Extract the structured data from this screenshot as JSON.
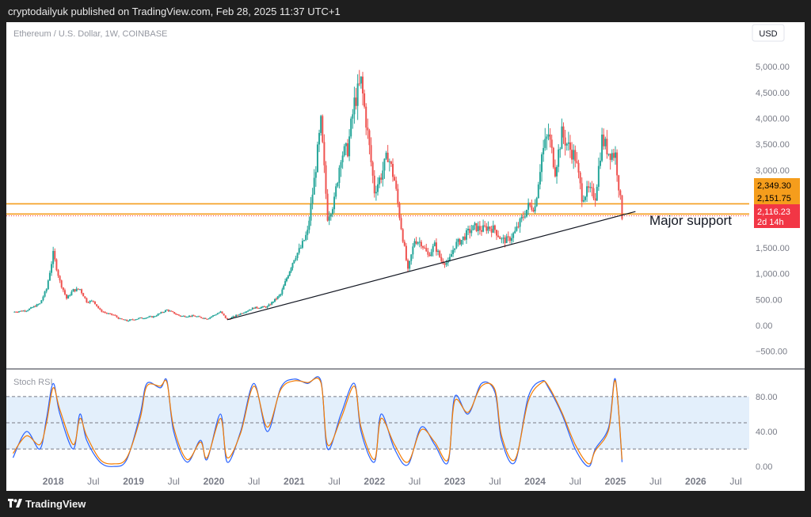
{
  "header": {
    "published": "cryptodailyuk published on TradingView.com, Feb 28, 2025 11:37 UTC+1"
  },
  "footer": {
    "brand": "TradingView"
  },
  "symbol_title": "Ethereum / U.S. Dollar, 1W, COINBASE",
  "currency": "USD",
  "annotation": "Major support",
  "indicator_label": "Stoch RSI",
  "price_labels": {
    "upper": {
      "value": "2,349.30",
      "color": "#f59d1c"
    },
    "middle": {
      "value": "2,151.75",
      "color": "#f59d1c"
    },
    "current": {
      "value": "2,116.23",
      "countdown": "2d 14h",
      "color": "#f23645"
    }
  },
  "colors": {
    "up": "#26a69a",
    "down": "#ef5350",
    "support": "#f59d1c",
    "stoch_k": "#2962ff",
    "stoch_d": "#f57c00",
    "stoch_band": "#e3effb"
  },
  "chart_data": [
    {
      "type": "candlestick",
      "title": "Ethereum / U.S. Dollar, 1W, COINBASE",
      "x_tick_labels": [
        "2018",
        "Jul",
        "2019",
        "Jul",
        "2020",
        "Jul",
        "2021",
        "Jul",
        "2022",
        "Jul",
        "2023",
        "Jul",
        "2024",
        "Jul",
        "2025",
        "Jul",
        "2026",
        "Jul"
      ],
      "y_tick_labels": [
        "5,000.00",
        "4,500.00",
        "4,000.00",
        "3,500.00",
        "3,000.00",
        "2,500.00",
        "2,000.00",
        "1,500.00",
        "1,000.00",
        "500.00",
        "0.00",
        "−500.00"
      ],
      "y_ticks": [
        5000,
        4500,
        4000,
        3500,
        3000,
        2500,
        2000,
        1500,
        1000,
        500,
        0,
        -500
      ],
      "xlim": [
        "2017-06",
        "2026-09"
      ],
      "ylim": [
        -750,
        5400
      ],
      "horizontal_levels": [
        2349.3,
        2151.75
      ],
      "trendline": {
        "from": {
          "x": "2020-03",
          "y": 110
        },
        "to": {
          "x": "2025-04",
          "y": 2200
        },
        "label": "Major support"
      },
      "series": [
        {
          "name": "",
          "points": [
            {
              "x": "2017-07",
              "y": 260
            },
            {
              "x": "2017-09",
              "y": 290
            },
            {
              "x": "2017-11",
              "y": 420
            },
            {
              "x": "2017-12",
              "y": 700
            },
            {
              "x": "2018-01",
              "y": 1380
            },
            {
              "x": "2018-02",
              "y": 850
            },
            {
              "x": "2018-03",
              "y": 520
            },
            {
              "x": "2018-04",
              "y": 680
            },
            {
              "x": "2018-05",
              "y": 700
            },
            {
              "x": "2018-06",
              "y": 460
            },
            {
              "x": "2018-07",
              "y": 470
            },
            {
              "x": "2018-08",
              "y": 290
            },
            {
              "x": "2018-09",
              "y": 230
            },
            {
              "x": "2018-10",
              "y": 200
            },
            {
              "x": "2018-11",
              "y": 120
            },
            {
              "x": "2018-12",
              "y": 90
            },
            {
              "x": "2019-02",
              "y": 140
            },
            {
              "x": "2019-04",
              "y": 170
            },
            {
              "x": "2019-06",
              "y": 300
            },
            {
              "x": "2019-08",
              "y": 180
            },
            {
              "x": "2019-10",
              "y": 180
            },
            {
              "x": "2019-12",
              "y": 130
            },
            {
              "x": "2020-02",
              "y": 260
            },
            {
              "x": "2020-03",
              "y": 110
            },
            {
              "x": "2020-05",
              "y": 230
            },
            {
              "x": "2020-07",
              "y": 340
            },
            {
              "x": "2020-09",
              "y": 360
            },
            {
              "x": "2020-11",
              "y": 600
            },
            {
              "x": "2021-01",
              "y": 1300
            },
            {
              "x": "2021-02",
              "y": 1500
            },
            {
              "x": "2021-03",
              "y": 1800
            },
            {
              "x": "2021-04",
              "y": 2800
            },
            {
              "x": "2021-05",
              "y": 3900
            },
            {
              "x": "2021-06",
              "y": 2100
            },
            {
              "x": "2021-07",
              "y": 2400
            },
            {
              "x": "2021-08",
              "y": 3300
            },
            {
              "x": "2021-09",
              "y": 3400
            },
            {
              "x": "2021-10",
              "y": 4300
            },
            {
              "x": "2021-11",
              "y": 4700
            },
            {
              "x": "2021-12",
              "y": 3700
            },
            {
              "x": "2022-01",
              "y": 2600
            },
            {
              "x": "2022-02",
              "y": 2900
            },
            {
              "x": "2022-03",
              "y": 3300
            },
            {
              "x": "2022-04",
              "y": 2800
            },
            {
              "x": "2022-05",
              "y": 1900
            },
            {
              "x": "2022-06",
              "y": 1050
            },
            {
              "x": "2022-07",
              "y": 1650
            },
            {
              "x": "2022-08",
              "y": 1600
            },
            {
              "x": "2022-09",
              "y": 1350
            },
            {
              "x": "2022-10",
              "y": 1550
            },
            {
              "x": "2022-11",
              "y": 1250
            },
            {
              "x": "2022-12",
              "y": 1200
            },
            {
              "x": "2023-01",
              "y": 1550
            },
            {
              "x": "2023-02",
              "y": 1650
            },
            {
              "x": "2023-03",
              "y": 1800
            },
            {
              "x": "2023-04",
              "y": 1900
            },
            {
              "x": "2023-05",
              "y": 1850
            },
            {
              "x": "2023-06",
              "y": 1900
            },
            {
              "x": "2023-07",
              "y": 1850
            },
            {
              "x": "2023-08",
              "y": 1650
            },
            {
              "x": "2023-09",
              "y": 1650
            },
            {
              "x": "2023-10",
              "y": 1800
            },
            {
              "x": "2023-11",
              "y": 2050
            },
            {
              "x": "2023-12",
              "y": 2300
            },
            {
              "x": "2024-01",
              "y": 2300
            },
            {
              "x": "2024-02",
              "y": 3300
            },
            {
              "x": "2024-03",
              "y": 3700
            },
            {
              "x": "2024-04",
              "y": 3000
            },
            {
              "x": "2024-05",
              "y": 3700
            },
            {
              "x": "2024-06",
              "y": 3450
            },
            {
              "x": "2024-07",
              "y": 3250
            },
            {
              "x": "2024-08",
              "y": 2500
            },
            {
              "x": "2024-09",
              "y": 2600
            },
            {
              "x": "2024-10",
              "y": 2500
            },
            {
              "x": "2024-11",
              "y": 3600
            },
            {
              "x": "2024-12",
              "y": 3350
            },
            {
              "x": "2025-01",
              "y": 3300
            },
            {
              "x": "2025-02",
              "y": 2116.23
            }
          ]
        }
      ]
    },
    {
      "type": "line",
      "title": "Stoch RSI",
      "x_tick_labels": [
        "2018",
        "Jul",
        "2019",
        "Jul",
        "2020",
        "Jul",
        "2021",
        "Jul",
        "2022",
        "Jul",
        "2023",
        "Jul",
        "2024",
        "Jul",
        "2025",
        "Jul",
        "2026",
        "Jul"
      ],
      "y_tick_labels": [
        "80.00",
        "40.00",
        "0.00"
      ],
      "y_ticks": [
        80,
        40,
        0
      ],
      "ylim": [
        -8,
        108
      ],
      "bands": [
        80,
        50,
        20
      ],
      "series": [
        {
          "name": "",
          "x": [
            "2017-07",
            "2017-09",
            "2017-11",
            "2017-12",
            "2018-01",
            "2018-02",
            "2018-04",
            "2018-05",
            "2018-06",
            "2018-08",
            "2018-10",
            "2018-12",
            "2019-02",
            "2019-03",
            "2019-05",
            "2019-06",
            "2019-07",
            "2019-09",
            "2019-11",
            "2019-12",
            "2020-02",
            "2020-03",
            "2020-05",
            "2020-07",
            "2020-09",
            "2020-11",
            "2021-01",
            "2021-03",
            "2021-05",
            "2021-06",
            "2021-08",
            "2021-10",
            "2021-11",
            "2022-01",
            "2022-02",
            "2022-04",
            "2022-06",
            "2022-08",
            "2022-10",
            "2022-12",
            "2023-01",
            "2023-03",
            "2023-05",
            "2023-07",
            "2023-08",
            "2023-10",
            "2023-12",
            "2024-02",
            "2024-03",
            "2024-05",
            "2024-07",
            "2024-09",
            "2024-10",
            "2024-12",
            "2025-01",
            "2025-02"
          ],
          "values": [
            10,
            40,
            20,
            55,
            95,
            60,
            20,
            60,
            30,
            5,
            0,
            8,
            60,
            95,
            90,
            98,
            40,
            5,
            30,
            8,
            60,
            5,
            40,
            95,
            40,
            90,
            100,
            95,
            98,
            20,
            60,
            95,
            40,
            5,
            60,
            20,
            2,
            45,
            25,
            5,
            80,
            60,
            95,
            85,
            30,
            5,
            80,
            98,
            90,
            60,
            20,
            0,
            20,
            45,
            100,
            5
          ]
        },
        {
          "name": "",
          "x": [
            "2017-07",
            "2017-09",
            "2017-11",
            "2017-12",
            "2018-01",
            "2018-02",
            "2018-04",
            "2018-05",
            "2018-06",
            "2018-08",
            "2018-10",
            "2018-12",
            "2019-02",
            "2019-03",
            "2019-05",
            "2019-06",
            "2019-07",
            "2019-09",
            "2019-11",
            "2019-12",
            "2020-02",
            "2020-03",
            "2020-05",
            "2020-07",
            "2020-09",
            "2020-11",
            "2021-01",
            "2021-03",
            "2021-05",
            "2021-06",
            "2021-08",
            "2021-10",
            "2021-11",
            "2022-01",
            "2022-02",
            "2022-04",
            "2022-06",
            "2022-08",
            "2022-10",
            "2022-12",
            "2023-01",
            "2023-03",
            "2023-05",
            "2023-07",
            "2023-08",
            "2023-10",
            "2023-12",
            "2024-02",
            "2024-03",
            "2024-05",
            "2024-07",
            "2024-09",
            "2024-10",
            "2024-12",
            "2025-01",
            "2025-02"
          ],
          "values": [
            15,
            35,
            25,
            50,
            90,
            65,
            25,
            55,
            35,
            8,
            3,
            10,
            55,
            92,
            92,
            96,
            45,
            8,
            28,
            10,
            55,
            10,
            38,
            92,
            45,
            88,
            98,
            96,
            96,
            25,
            55,
            92,
            45,
            8,
            55,
            25,
            5,
            42,
            28,
            8,
            75,
            62,
            92,
            88,
            35,
            8,
            75,
            96,
            92,
            62,
            25,
            3,
            18,
            42,
            98,
            8
          ]
        }
      ]
    }
  ]
}
